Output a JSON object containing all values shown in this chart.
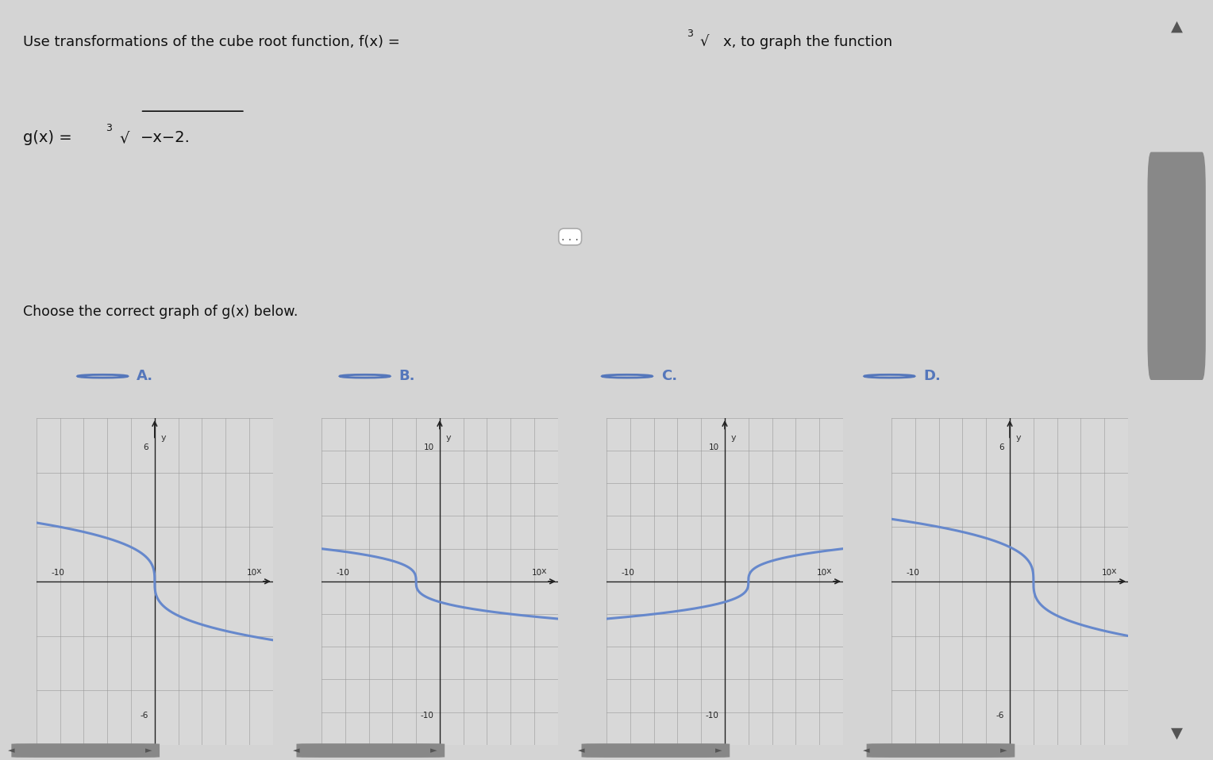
{
  "bg_color": "#d4d4d4",
  "panel_bg": "#e8e8e8",
  "graph_bg": "#d8d8d8",
  "grid_color": "#999999",
  "curve_color": "#6688cc",
  "axis_color": "#222222",
  "text_color": "#111111",
  "radio_color": "#5577bb",
  "title1": "Use transformations of the cube root function, f(x) = ",
  "title1b": "x, to graph the function",
  "title2": "g(x) = ",
  "title2b": "-x-2.",
  "subtitle": "Choose the correct graph of g(x) below.",
  "options": [
    "A.",
    "B.",
    "C.",
    "D."
  ],
  "graphs": [
    {
      "label": "A",
      "xlim": [
        -10,
        10
      ],
      "ylim": [
        -6,
        6
      ],
      "func": "cbrt_neg_x",
      "ytop": "6",
      "ybot": "-6",
      "xright": "10"
    },
    {
      "label": "B",
      "xlim": [
        -10,
        10
      ],
      "ylim": [
        -10,
        10
      ],
      "func": "cbrt_neg_x_m2",
      "ytop": "10",
      "ybot": "-10",
      "xright": "10"
    },
    {
      "label": "C",
      "xlim": [
        -10,
        10
      ],
      "ylim": [
        -10,
        10
      ],
      "func": "cbrt_x_m2",
      "ytop": "10",
      "ybot": "-10",
      "xright": "10"
    },
    {
      "label": "D",
      "xlim": [
        -10,
        10
      ],
      "ylim": [
        -6,
        6
      ],
      "func": "cbrt_neg_x_p2",
      "ytop": "6",
      "ybot": "-6",
      "xright": "10"
    }
  ]
}
